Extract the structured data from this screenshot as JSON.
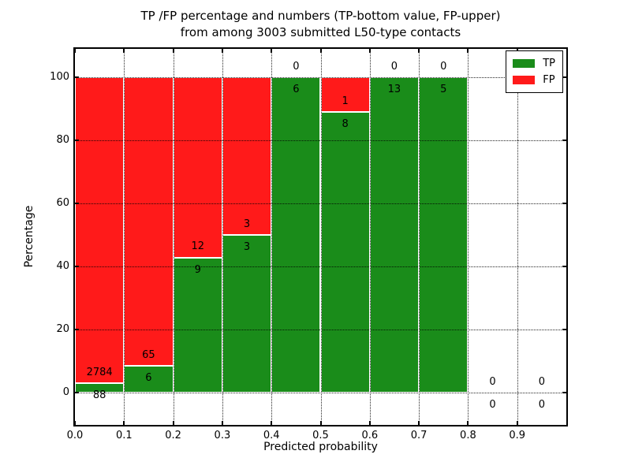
{
  "figure": {
    "title_line1": "TP /FP percentage and numbers (TP-bottom value, FP-upper)",
    "title_line2": "from among 3003 submitted L50-type contacts"
  },
  "chart_data": {
    "type": "bar",
    "stacked": true,
    "title": "TP /FP percentage and numbers (TP-bottom value, FP-upper)\nfrom among 3003 submitted L50-type contacts",
    "xlabel": "Predicted probability",
    "ylabel": "Percentage",
    "xlim": [
      0.0,
      1.0
    ],
    "ylim": [
      -10.25,
      109.0
    ],
    "xticks": [
      0.0,
      0.1,
      0.2,
      0.3,
      0.4,
      0.5,
      0.6,
      0.7,
      0.8,
      0.9
    ],
    "xtick_labels": [
      "0.0",
      "0.1",
      "0.2",
      "0.3",
      "0.4",
      "0.5",
      "0.6",
      "0.7",
      "0.8",
      "0.9"
    ],
    "yticks": [
      0,
      20,
      40,
      60,
      80,
      100
    ],
    "ytick_labels": [
      "0",
      "20",
      "40",
      "60",
      "80",
      "100"
    ],
    "grid": {
      "style": "dotted",
      "color": "#000000"
    },
    "colors": {
      "tp": "#1a8c1a",
      "fp": "#ff1a1a",
      "bar_edge": "#ffffff"
    },
    "legend": {
      "position": "upper right",
      "entries": [
        {
          "label": "TP",
          "color": "#1a8c1a"
        },
        {
          "label": "FP",
          "color": "#ff1a1a"
        }
      ]
    },
    "total_submitted": 3003,
    "bins": [
      {
        "x_start": 0.0,
        "x_end": 0.1,
        "tp_count": 88,
        "fp_count": 2784,
        "tp_pct": 3.06,
        "fp_pct": 96.94
      },
      {
        "x_start": 0.1,
        "x_end": 0.2,
        "tp_count": 6,
        "fp_count": 65,
        "tp_pct": 8.45,
        "fp_pct": 91.55
      },
      {
        "x_start": 0.2,
        "x_end": 0.3,
        "tp_count": 9,
        "fp_count": 12,
        "tp_pct": 42.86,
        "fp_pct": 57.14
      },
      {
        "x_start": 0.3,
        "x_end": 0.4,
        "tp_count": 3,
        "fp_count": 3,
        "tp_pct": 50.0,
        "fp_pct": 50.0
      },
      {
        "x_start": 0.4,
        "x_end": 0.5,
        "tp_count": 6,
        "fp_count": 0,
        "tp_pct": 100.0,
        "fp_pct": 0.0
      },
      {
        "x_start": 0.5,
        "x_end": 0.6,
        "tp_count": 8,
        "fp_count": 1,
        "tp_pct": 88.89,
        "fp_pct": 11.11
      },
      {
        "x_start": 0.6,
        "x_end": 0.7,
        "tp_count": 13,
        "fp_count": 0,
        "tp_pct": 100.0,
        "fp_pct": 0.0
      },
      {
        "x_start": 0.7,
        "x_end": 0.8,
        "tp_count": 5,
        "fp_count": 0,
        "tp_pct": 100.0,
        "fp_pct": 0.0
      },
      {
        "x_start": 0.8,
        "x_end": 0.9,
        "tp_count": 0,
        "fp_count": 0,
        "tp_pct": 0.0,
        "fp_pct": 0.0
      },
      {
        "x_start": 0.9,
        "x_end": 1.0,
        "tp_count": 0,
        "fp_count": 0,
        "tp_pct": 0.0,
        "fp_pct": 0.0
      }
    ]
  }
}
